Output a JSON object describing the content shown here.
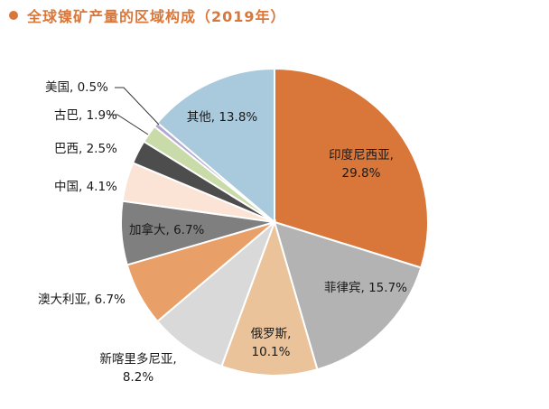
{
  "title": "全球镍矿产量的区域构成（2019年）",
  "chart_data": {
    "type": "pie",
    "title": "全球镍矿产量的区域构成（2019年）",
    "unit": "%",
    "slices": [
      {
        "label": "印度尼西亚",
        "value": 29.8,
        "display": "印度尼西亚,\n29.8%",
        "color": "#d9773a"
      },
      {
        "label": "菲律宾",
        "value": 15.7,
        "display": "菲律宾, 15.7%",
        "color": "#b3b3b3"
      },
      {
        "label": "俄罗斯",
        "value": 10.1,
        "display": "俄罗斯,\n10.1%",
        "color": "#ebc39b"
      },
      {
        "label": "新喀里多尼亚",
        "value": 8.2,
        "display": "新喀里多尼亚,\n8.2%",
        "color": "#d9d9d9"
      },
      {
        "label": "澳大利亚",
        "value": 6.7,
        "display": "澳大利亚, 6.7%",
        "color": "#e8a068"
      },
      {
        "label": "加拿大",
        "value": 6.7,
        "display": "加拿大, 6.7%",
        "color": "#7f7f7f"
      },
      {
        "label": "中国",
        "value": 4.1,
        "display": "中国, 4.1%",
        "color": "#fbe4d5"
      },
      {
        "label": "巴西",
        "value": 2.5,
        "display": "巴西, 2.5%",
        "color": "#4d4d4d"
      },
      {
        "label": "古巴",
        "value": 1.9,
        "display": "古巴, 1.9%",
        "color": "#c9dba8"
      },
      {
        "label": "美国",
        "value": 0.5,
        "display": "美国, 0.5%",
        "color": "#b4a7d6"
      },
      {
        "label": "其他",
        "value": 13.8,
        "display": "其他, 13.8%",
        "color": "#a9c9dc"
      }
    ]
  }
}
